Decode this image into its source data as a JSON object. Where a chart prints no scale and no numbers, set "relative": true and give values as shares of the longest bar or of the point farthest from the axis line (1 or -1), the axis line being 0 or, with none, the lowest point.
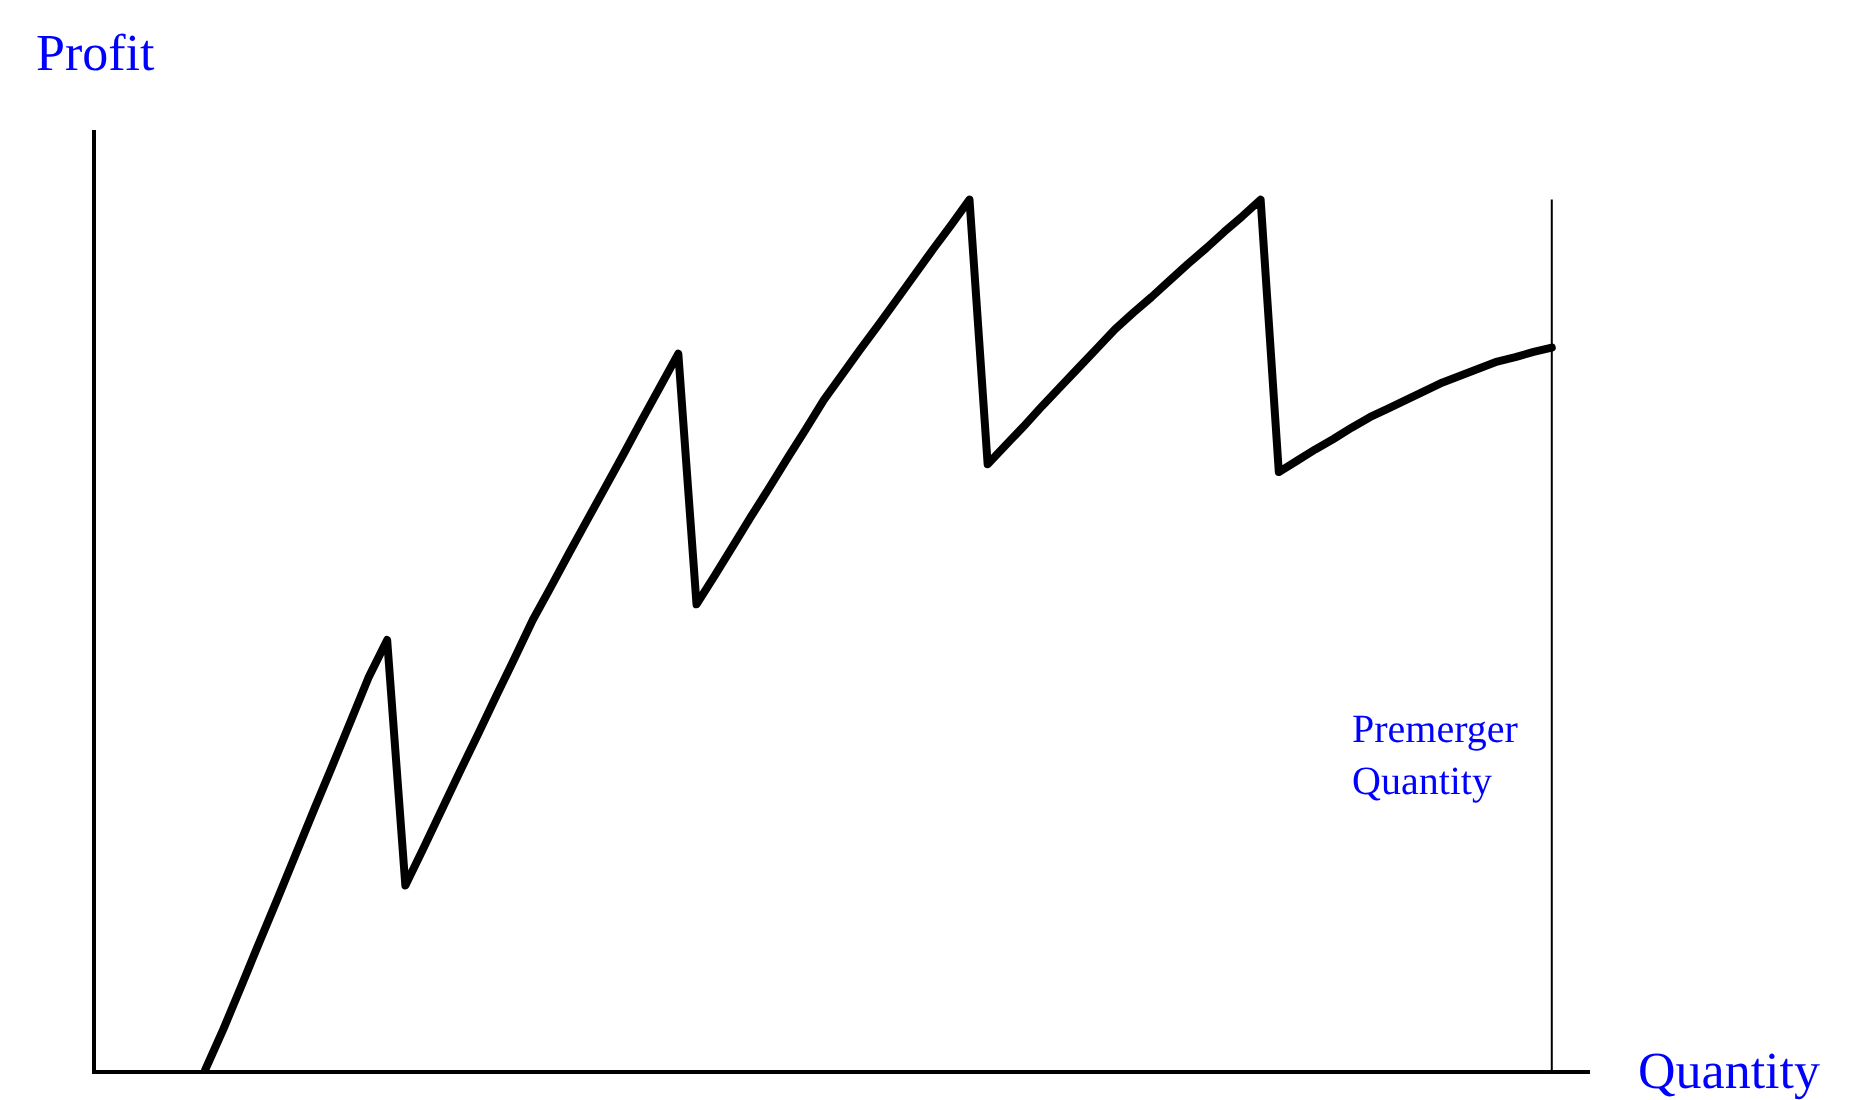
{
  "chart_data": {
    "type": "line",
    "relative": true,
    "xlabel": "Quantity",
    "ylabel": "Profit",
    "marker": "none",
    "line_style": "solid",
    "categories": [
      null,
      null,
      null,
      null,
      null,
      null,
      null,
      null,
      null,
      null,
      null,
      null,
      null,
      null,
      null,
      null,
      null,
      null,
      null,
      null,
      null,
      null,
      null,
      null,
      null,
      null,
      null,
      null,
      null,
      null,
      null,
      null,
      null,
      null,
      null,
      null,
      null,
      null,
      null,
      null,
      null,
      null,
      null,
      null,
      null,
      null,
      null,
      null,
      null,
      null,
      null,
      null,
      null,
      null,
      null,
      null,
      null,
      null,
      null,
      null,
      null,
      null,
      null,
      null,
      null,
      null,
      null,
      null,
      null,
      null,
      null,
      null,
      null,
      null,
      null
    ],
    "series": [
      {
        "color": "#000000",
        "values": [
          0,
          0.047,
          0.097,
          0.148,
          0.198,
          0.249,
          0.3,
          0.35,
          0.401,
          0.452,
          0.494,
          0.212,
          0.255,
          0.299,
          0.343,
          0.386,
          0.43,
          0.473,
          0.517,
          0.555,
          0.594,
          0.632,
          0.67,
          0.708,
          0.747,
          0.785,
          0.823,
          0.535,
          0.568,
          0.602,
          0.636,
          0.669,
          0.703,
          0.736,
          0.77,
          0.799,
          0.828,
          0.856,
          0.885,
          0.914,
          0.943,
          0.971,
          1,
          0.696,
          0.718,
          0.74,
          0.763,
          0.785,
          0.807,
          0.829,
          0.851,
          0.87,
          0.888,
          0.907,
          0.926,
          0.944,
          0.963,
          0.981,
          1,
          0.687,
          0.7,
          0.713,
          0.725,
          0.738,
          0.75,
          0.76,
          0.77,
          0.78,
          0.79,
          0.798,
          0.806,
          0.814,
          0.819,
          0.825,
          0.83
        ]
      }
    ],
    "ref_lines": [
      {
        "axis": "x",
        "label": "Premerger Quantity",
        "color": "#000000"
      }
    ]
  }
}
